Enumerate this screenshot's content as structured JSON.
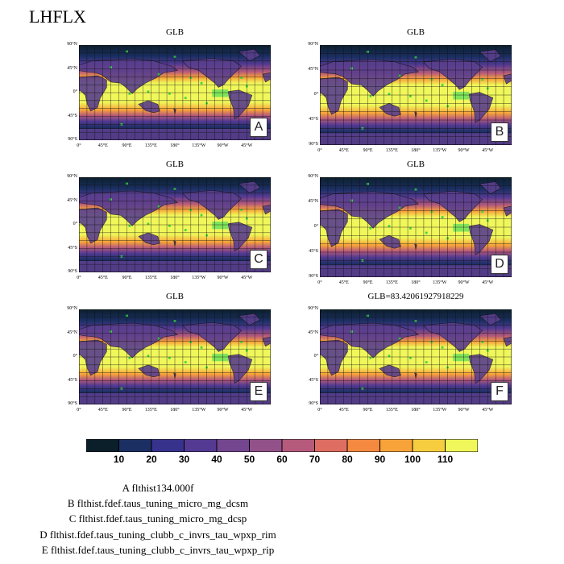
{
  "title": "LHFLX",
  "panels": [
    {
      "id": "A",
      "title": "GLB"
    },
    {
      "id": "B",
      "title": "GLB"
    },
    {
      "id": "C",
      "title": "GLB"
    },
    {
      "id": "D",
      "title": "GLB"
    },
    {
      "id": "E",
      "title": "GLB"
    },
    {
      "id": "F",
      "title": "GLB=83.42061927918229"
    }
  ],
  "lat_ticks": [
    "90°N",
    "45°N",
    "0°",
    "45°S",
    "90°S"
  ],
  "lon_ticks": [
    "0°",
    "45°E",
    "90°E",
    "135°E",
    "180°",
    "135°W",
    "90°W",
    "45°W"
  ],
  "colorbar": {
    "labels": [
      "10",
      "20",
      "30",
      "40",
      "50",
      "60",
      "70",
      "80",
      "90",
      "100",
      "110"
    ],
    "colors": [
      "#0b1f2b",
      "#1b2f63",
      "#37328c",
      "#543a92",
      "#73468f",
      "#93518a",
      "#b65a7b",
      "#de6e61",
      "#f4893f",
      "#f8a33a",
      "#f7cd40",
      "#f0f75a"
    ]
  },
  "legend": [
    "A  flthist134.000f",
    "B  flthist.fdef.taus_tuning_micro_mg_dcsm",
    "C  flthist.fdef.taus_tuning_micro_mg_dcsp",
    "D  flthist.fdef.taus_tuning_clubb_c_invrs_tau_wpxp_rim",
    "E  flthist.fdef.taus_tuning_clubb_c_invrs_tau_wpxp_rip"
  ]
}
